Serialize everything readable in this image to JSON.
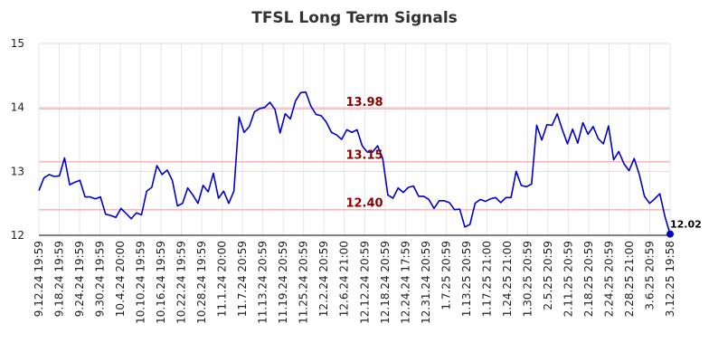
{
  "chart_data": {
    "type": "line",
    "title": "TFSL Long Term Signals",
    "xlabel": "",
    "ylabel": "",
    "ylim": [
      12,
      15
    ],
    "y_ticks": [
      "12",
      "13",
      "14",
      "15"
    ],
    "grid": true,
    "line_color": "#0000cc",
    "ref_line_color": "#ffb3b3",
    "ref_label_color": "#8b0000",
    "reference_lines": [
      {
        "value": 13.98,
        "label": "13.98"
      },
      {
        "value": 13.15,
        "label": "13.15"
      },
      {
        "value": 12.4,
        "label": "12.40"
      }
    ],
    "x_tick_labels": [
      "9.12.24 19:59",
      "9.18.24 19:59",
      "9.24.24 19:59",
      "9.30.24 19:59",
      "10.4.24 20:00",
      "10.10.24 19:59",
      "10.16.24 19:59",
      "10.22.24 19:59",
      "10.28.24 19:59",
      "11.1.24 20:00",
      "11.7.24 20:59",
      "11.13.24 20:59",
      "11.19.24 20:59",
      "11.25.24 20:59",
      "12.2.24 20:59",
      "12.6.24 21:00",
      "12.12.24 20:59",
      "12.18.24 20:59",
      "12.24.24 17:59",
      "12.31.24 20:59",
      "1.7.25 20:59",
      "1.13.25 20:59",
      "1.17.25 21:00",
      "1.24.25 21:00",
      "1.30.25 20:59",
      "2.5.25 20:59",
      "2.11.25 20:59",
      "2.18.25 20:59",
      "2.24.25 20:59",
      "2.28.25 21:00",
      "3.6.25 20:59",
      "3.12.25 19:58"
    ],
    "series": [
      {
        "values": [
          12.7,
          12.9,
          12.95,
          12.92,
          12.93,
          13.21,
          12.79,
          12.83,
          12.86,
          12.6,
          12.6,
          12.57,
          12.6,
          12.33,
          12.31,
          12.28,
          12.42,
          12.34,
          12.26,
          12.35,
          12.32,
          12.69,
          12.75,
          13.09,
          12.95,
          13.02,
          12.86,
          12.46,
          12.5,
          12.74,
          12.63,
          12.5,
          12.78,
          12.68,
          12.97,
          12.58,
          12.69,
          12.5,
          12.69,
          13.85,
          13.61,
          13.7,
          13.93,
          13.98,
          14.0,
          14.08,
          13.97,
          13.6,
          13.9,
          13.82,
          14.1,
          14.23,
          14.24,
          14.02,
          13.89,
          13.87,
          13.77,
          13.61,
          13.57,
          13.5,
          13.65,
          13.61,
          13.65,
          13.4,
          13.3,
          13.3,
          13.4,
          13.2,
          12.63,
          12.58,
          12.74,
          12.67,
          12.75,
          12.77,
          12.61,
          12.61,
          12.56,
          12.42,
          12.54,
          12.54,
          12.51,
          12.4,
          12.41,
          12.13,
          12.17,
          12.5,
          12.56,
          12.53,
          12.57,
          12.59,
          12.51,
          12.59,
          12.59,
          13.0,
          12.78,
          12.76,
          12.8,
          13.72,
          13.49,
          13.73,
          13.72,
          13.9,
          13.65,
          13.43,
          13.66,
          13.44,
          13.76,
          13.58,
          13.7,
          13.51,
          13.43,
          13.71,
          13.18,
          13.31,
          13.12,
          13.01,
          13.2,
          12.95,
          12.61,
          12.5,
          12.57,
          12.65,
          12.29,
          12.02
        ]
      }
    ],
    "last_point": {
      "value": 12.02,
      "label": "12.02"
    }
  }
}
